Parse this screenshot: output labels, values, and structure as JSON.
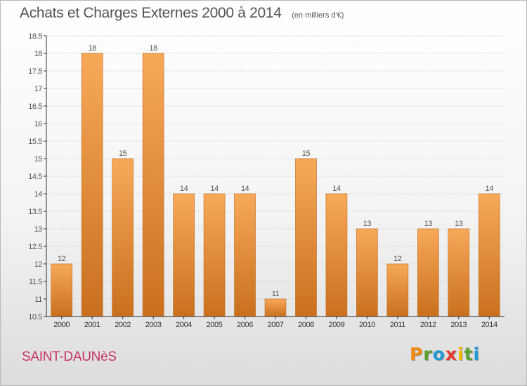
{
  "colors": {
    "bar_top": "#f7a95a",
    "bar_bottom": "#c9701e",
    "bar_stroke": "#bf6a18",
    "axis": "#333333",
    "grid": "#d4d4d4",
    "text": "#555555",
    "location": "#c8326a"
  },
  "header": {
    "title": "Achats et Charges Externes 2000 à 2014",
    "subtitle": "(en milliers d'€)"
  },
  "location": "SAINT-DAUNèS",
  "brand": {
    "letters": [
      "P",
      "r",
      "o",
      "x",
      "i",
      "t",
      "i"
    ],
    "colors": [
      "#f28a10",
      "#5aa02c",
      "#1f9ad6",
      "#e53a2f",
      "#f2b800",
      "#5aa02c",
      "#1f9ad6"
    ]
  },
  "chart_data": {
    "type": "bar",
    "categories": [
      "2000",
      "2001",
      "2002",
      "2003",
      "2004",
      "2005",
      "2006",
      "2007",
      "2008",
      "2009",
      "2010",
      "2011",
      "2012",
      "2013",
      "2014"
    ],
    "values": [
      12,
      18,
      15,
      18,
      14,
      14,
      14,
      11,
      15,
      14,
      13,
      12,
      13,
      13,
      14
    ],
    "value_labels": [
      "12",
      "18",
      "15",
      "18",
      "14",
      "14",
      "14",
      "11",
      "15",
      "14",
      "13",
      "12",
      "13",
      "13",
      "14"
    ],
    "ylim": [
      10.5,
      18.5
    ],
    "yticks": [
      10.5,
      11,
      11.5,
      12,
      12.5,
      13,
      13.5,
      14,
      14.5,
      15,
      15.5,
      16,
      16.5,
      17,
      17.5,
      18,
      18.5
    ],
    "ytick_labels": [
      "10.5",
      "11",
      "11.5",
      "12",
      "12.5",
      "13",
      "13.5",
      "14",
      "14.5",
      "15",
      "15.5",
      "16",
      "16.5",
      "17",
      "17.5",
      "18",
      "18.5"
    ],
    "grid": true,
    "legend": "none"
  }
}
